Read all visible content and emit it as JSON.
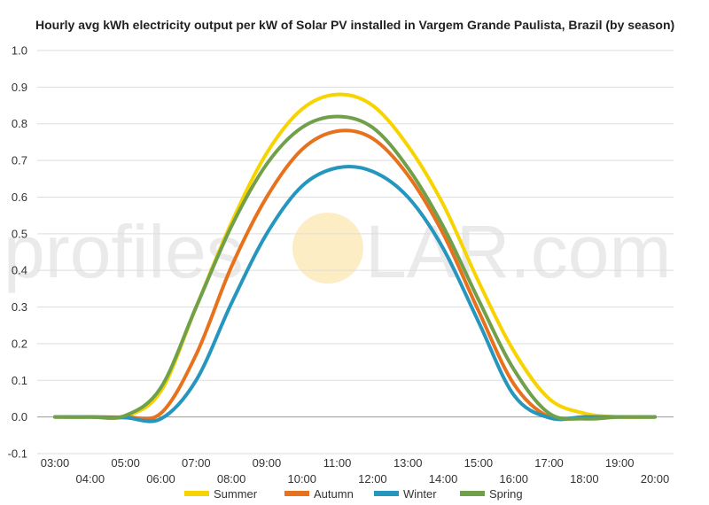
{
  "chart_data": {
    "type": "line",
    "title": "Hourly avg kWh electricity output per kW of Solar PV installed in Vargem Grande Paulista, Brazil (by season)",
    "xlabel": "",
    "ylabel": "",
    "categories": [
      "03:00",
      "04:00",
      "05:00",
      "06:00",
      "07:00",
      "08:00",
      "09:00",
      "10:00",
      "11:00",
      "12:00",
      "13:00",
      "14:00",
      "15:00",
      "16:00",
      "17:00",
      "18:00",
      "19:00",
      "20:00"
    ],
    "ylim": [
      -0.1,
      1.0
    ],
    "yticks": [
      "-0.1",
      "0.0",
      "0.1",
      "0.2",
      "0.3",
      "0.4",
      "0.5",
      "0.6",
      "0.7",
      "0.8",
      "0.9",
      "1.0"
    ],
    "grid": true,
    "legend_position": "bottom",
    "series": [
      {
        "name": "Summer",
        "color": "#f7d300",
        "values": [
          0,
          0,
          0.002,
          0.07,
          0.3,
          0.53,
          0.72,
          0.84,
          0.88,
          0.85,
          0.74,
          0.58,
          0.37,
          0.18,
          0.05,
          0.01,
          0.0,
          0.0
        ]
      },
      {
        "name": "Autumn",
        "color": "#e8711e",
        "values": [
          0,
          0,
          0,
          0.01,
          0.17,
          0.41,
          0.6,
          0.73,
          0.78,
          0.76,
          0.66,
          0.5,
          0.29,
          0.09,
          0.0,
          0.0,
          0.0,
          0.0
        ]
      },
      {
        "name": "Winter",
        "color": "#2596be",
        "values": [
          0,
          0,
          -0.002,
          -0.005,
          0.1,
          0.31,
          0.5,
          0.63,
          0.68,
          0.67,
          0.6,
          0.46,
          0.26,
          0.06,
          -0.002,
          0.0,
          0.0,
          0.0
        ]
      },
      {
        "name": "Spring",
        "color": "#70a04a",
        "values": [
          0,
          0,
          0.004,
          0.08,
          0.3,
          0.52,
          0.69,
          0.79,
          0.82,
          0.79,
          0.68,
          0.52,
          0.32,
          0.13,
          0.01,
          -0.005,
          0.0,
          0.0
        ]
      }
    ]
  },
  "watermark": {
    "left": "profiles",
    "right": "LAR.com"
  }
}
